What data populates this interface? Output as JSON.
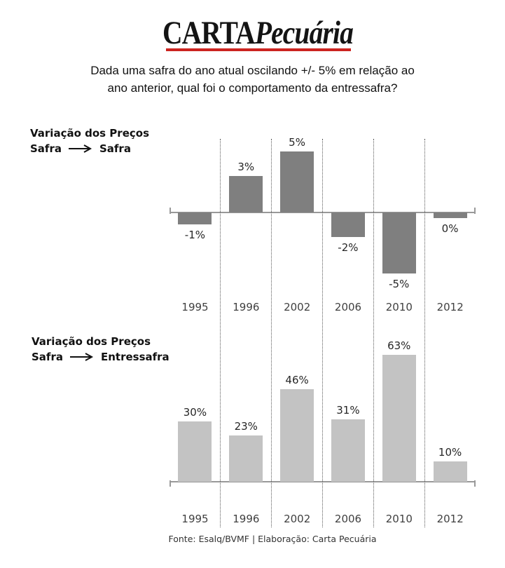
{
  "logo": {
    "title_part_bold": "CARTA",
    "title_part_italic": "Pecuária"
  },
  "question": {
    "line1": "Dada uma safra do ano atual oscilando +/- 5% em relação ao",
    "line2": "ano anterior, qual foi o comportamento da entressafra?"
  },
  "section_labels": [
    {
      "line1": "Variação dos Preços",
      "from": "Safra",
      "to": "Safra"
    },
    {
      "line1": "Variação dos Preços",
      "from": "Safra",
      "to": "Entressafra"
    }
  ],
  "footer": "Fonte: Esalq/BVMF | Elaboração: Carta Pecuária",
  "colors": {
    "logo_underline": "#cc2420",
    "dark_bar": "#7f7f7f",
    "light_bar": "#c3c3c3",
    "separator_line": "#595959",
    "axis_line": "#999999",
    "value_label_text": "#262626",
    "year_label_text": "#404040"
  },
  "chart_data": [
    {
      "type": "bar",
      "title": "Variação dos Preços Safra → Safra",
      "categories": [
        "1995",
        "1996",
        "2002",
        "2006",
        "2010",
        "2012"
      ],
      "values": [
        -1,
        3,
        5,
        -2,
        -5,
        0
      ],
      "labels": [
        "-1%",
        "3%",
        "5%",
        "-2%",
        "-5%",
        "0%"
      ],
      "ylim": [
        -6,
        6
      ],
      "bar_color": "#7f7f7f",
      "legend": "none",
      "grid": "vertical dotted separators between categories",
      "value_label_position": "outside end"
    },
    {
      "type": "bar",
      "title": "Variação dos Preços Safra → Entressafra",
      "categories": [
        "1995",
        "1996",
        "2002",
        "2006",
        "2010",
        "2012"
      ],
      "values": [
        30,
        23,
        46,
        31,
        63,
        10
      ],
      "labels": [
        "30%",
        "23%",
        "46%",
        "31%",
        "63%",
        "10%"
      ],
      "ylim": [
        0,
        70
      ],
      "bar_color": "#c3c3c3",
      "legend": "none",
      "grid": "vertical dotted separators between categories",
      "value_label_position": "outside end"
    }
  ]
}
